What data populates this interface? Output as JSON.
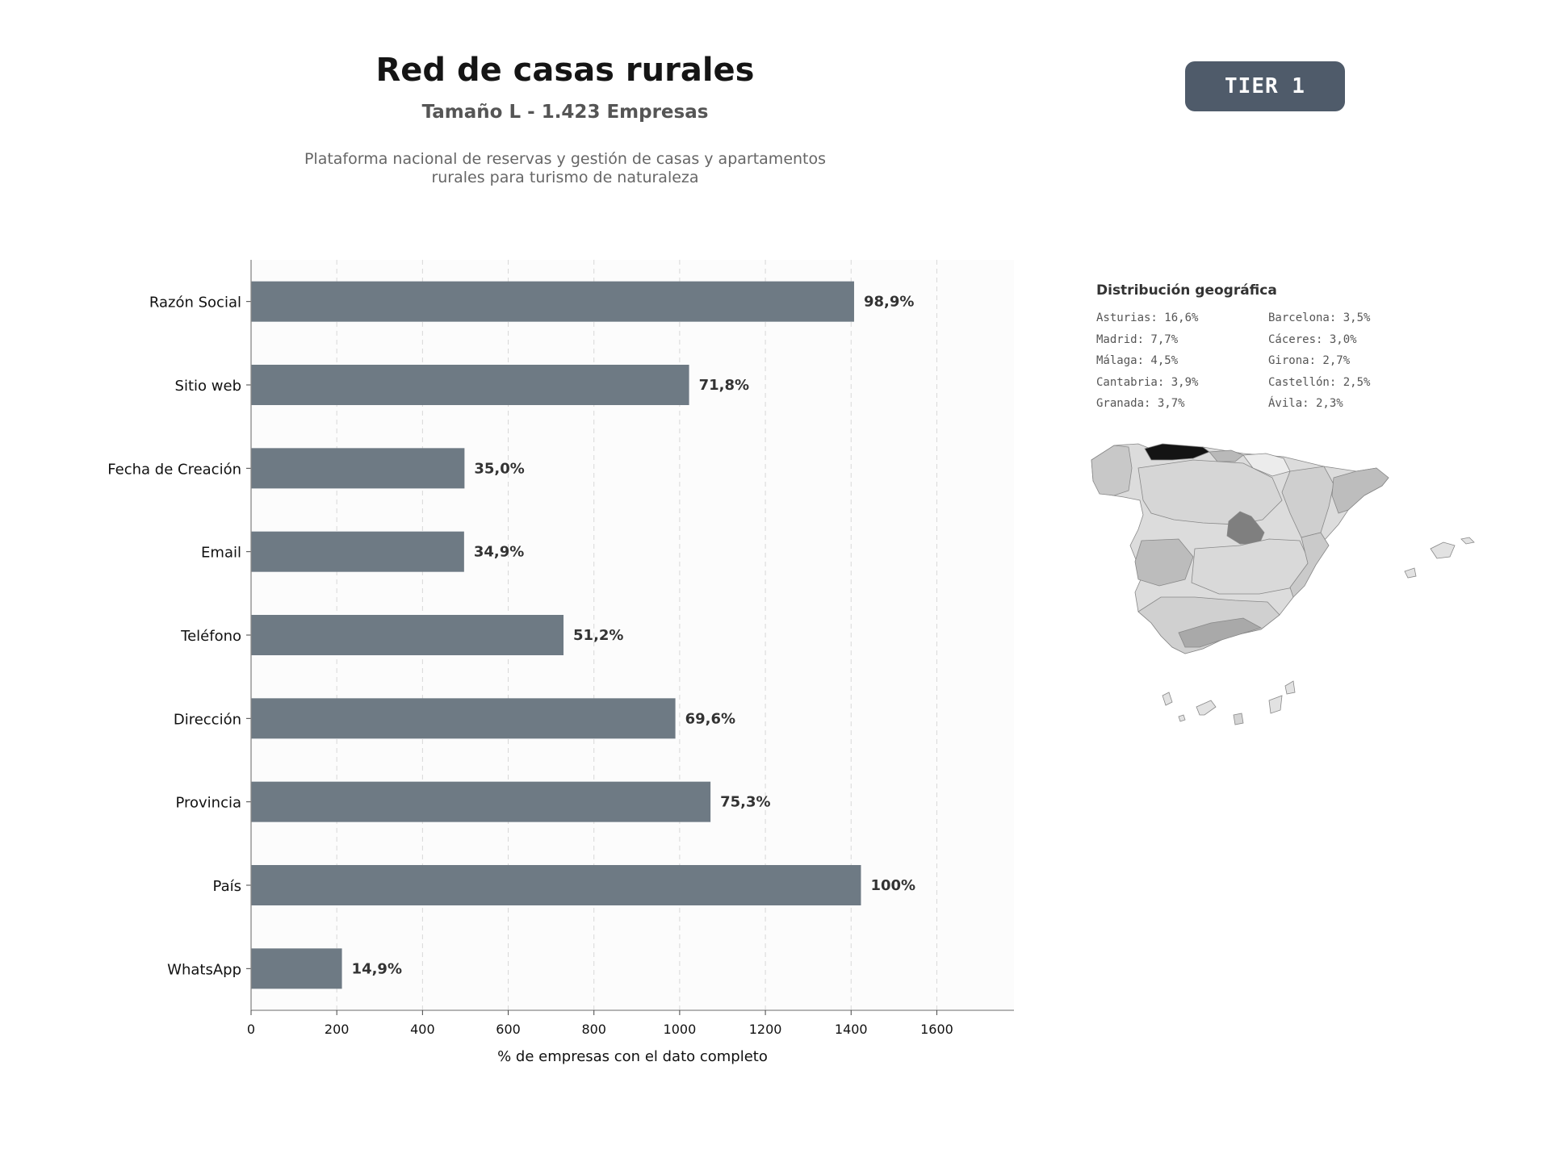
{
  "header": {
    "title": "Red de casas rurales",
    "subtitle": "Tamaño L - 1.423 Empresas",
    "description_line1": "Plataforma nacional de reservas y gestión de casas y apartamentos",
    "description_line2": "rurales para turismo de naturaleza",
    "tier_badge": "TIER 1",
    "badge_color": "#4f5b6a"
  },
  "chart_data": {
    "type": "bar",
    "orientation": "horizontal",
    "categories": [
      "Razón Social",
      "Sitio web",
      "Fecha de Creación",
      "Email",
      "Teléfono",
      "Dirección",
      "Provincia",
      "País",
      "WhatsApp"
    ],
    "values": [
      1407,
      1022,
      498,
      497,
      729,
      990,
      1072,
      1423,
      212
    ],
    "data_labels": [
      "98,9%",
      "71,8%",
      "35,0%",
      "34,9%",
      "51,2%",
      "69,6%",
      "75,3%",
      "100%",
      "14,9%"
    ],
    "xlabel": "% de empresas con el dato completo",
    "ylabel": "",
    "xlim": [
      0,
      1780
    ],
    "xticks": [
      0,
      200,
      400,
      600,
      800,
      1000,
      1200,
      1400,
      1600
    ],
    "grid": "vertical dashed",
    "bar_color": "#6e7a84"
  },
  "geo": {
    "title": "Distribución geográfica",
    "left_column": [
      "Asturias: 16,6%",
      "Madrid: 7,7%",
      "Málaga: 4,5%",
      "Cantabria: 3,9%",
      "Granada: 3,7%"
    ],
    "right_column": [
      "Barcelona: 3,5%",
      "Cáceres: 3,0%",
      "Girona: 2,7%",
      "Castellón: 2,5%",
      "Ávila: 2,3%"
    ]
  }
}
